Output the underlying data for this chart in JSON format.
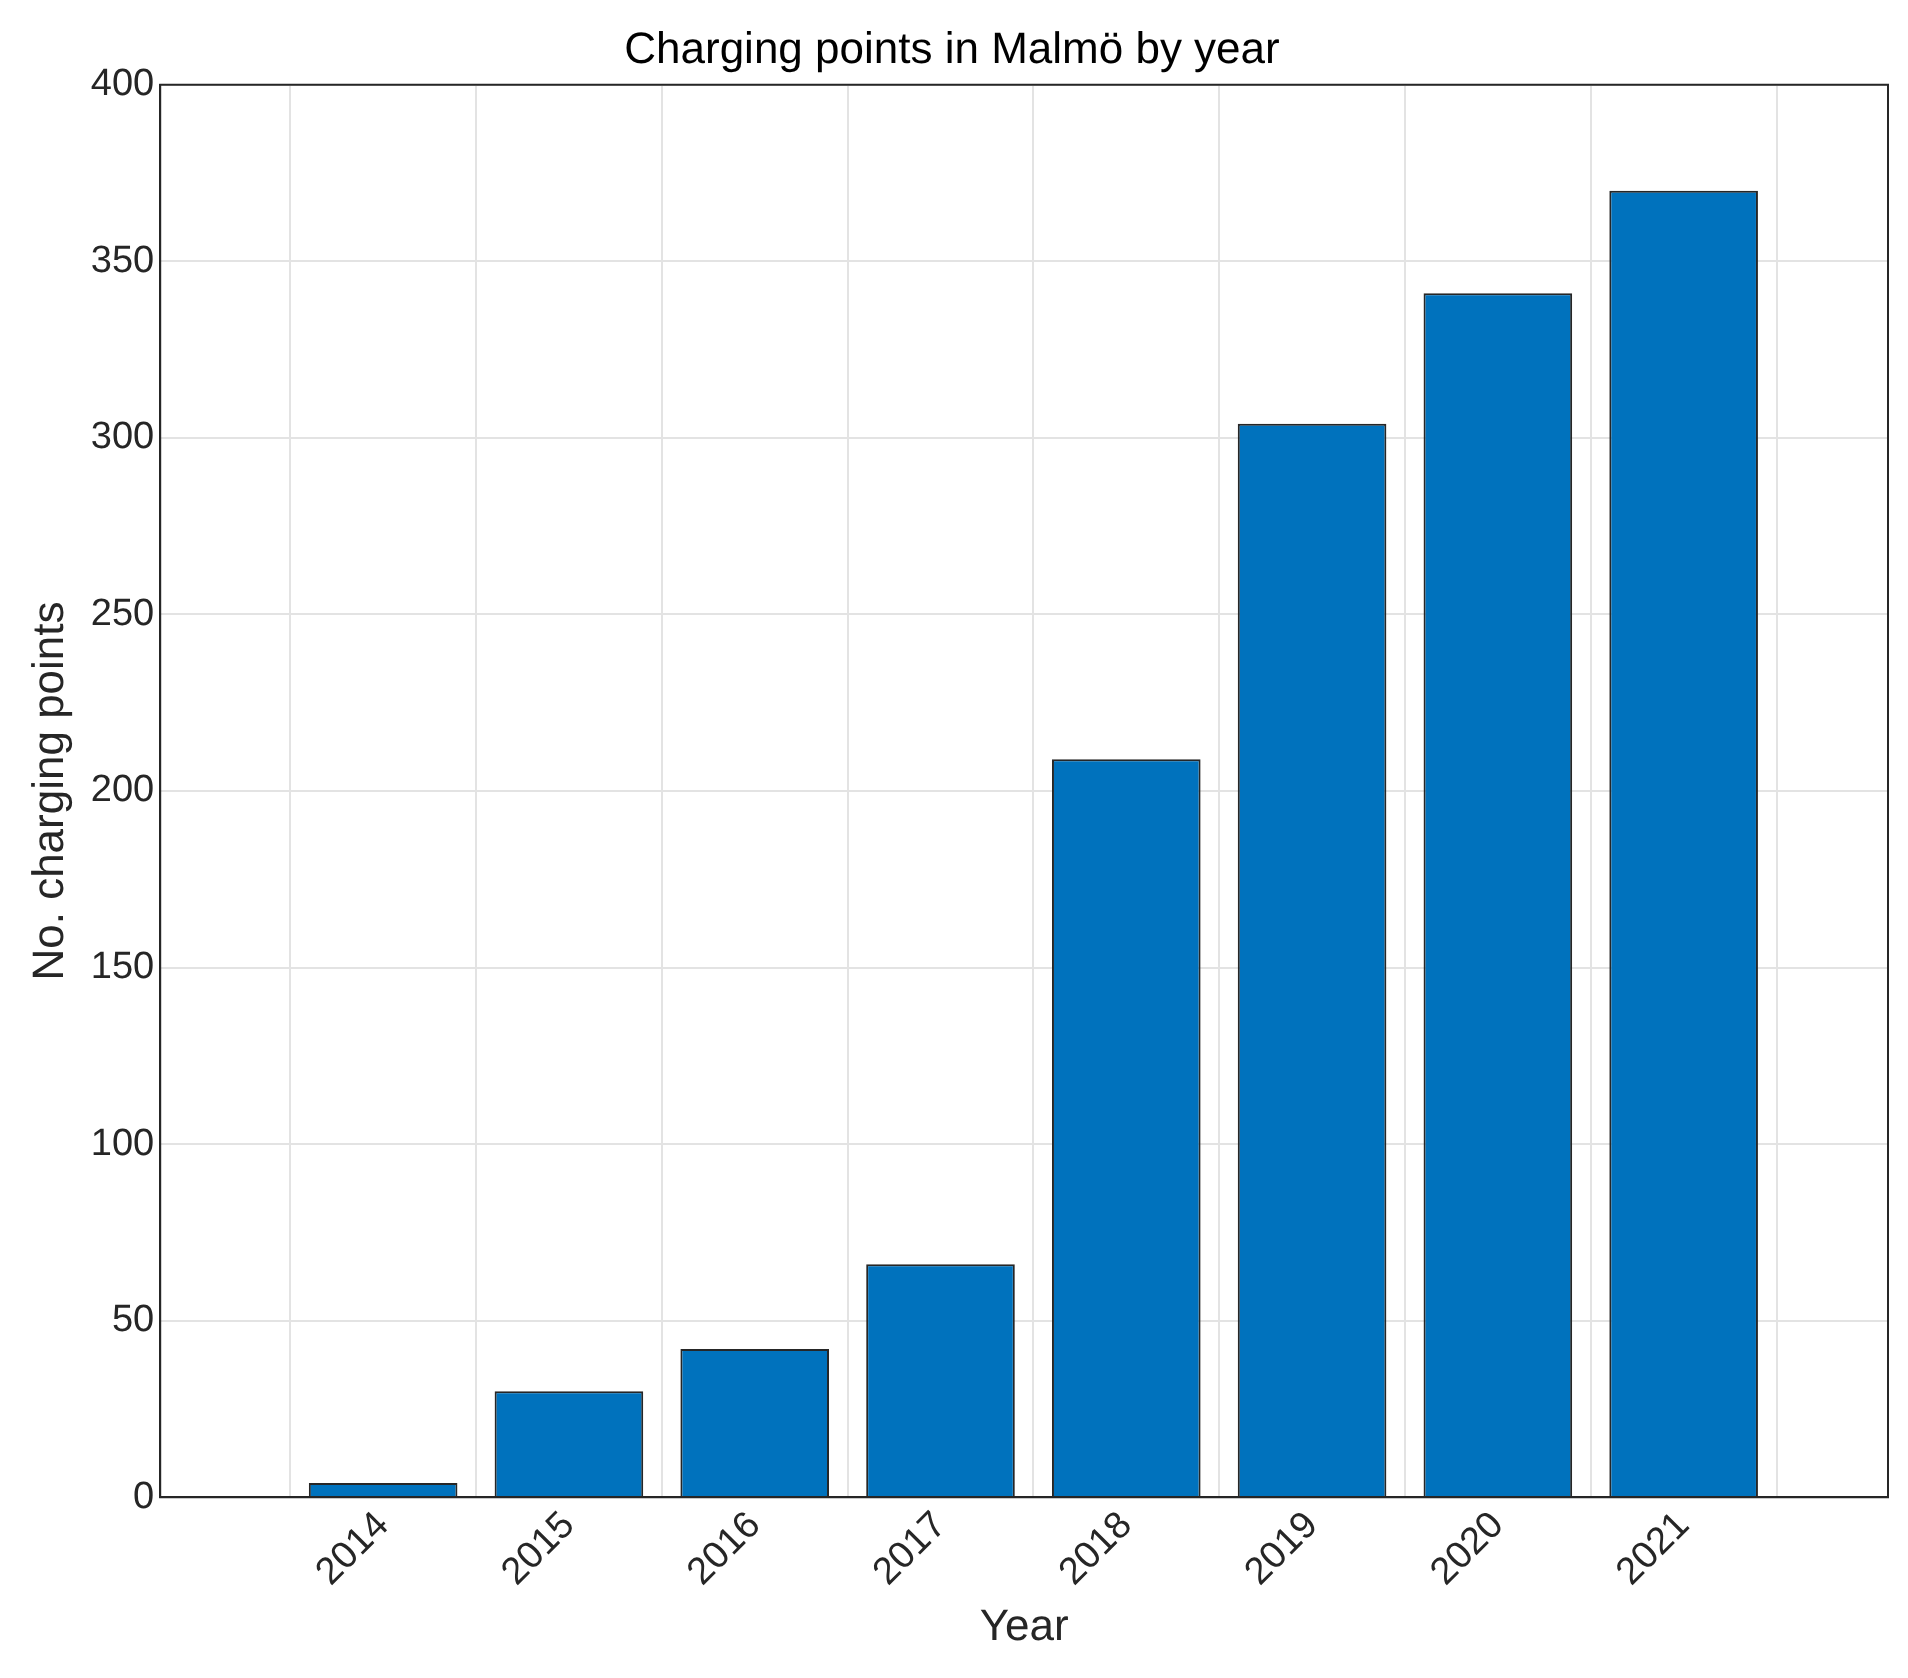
{
  "chart_data": {
    "type": "bar",
    "title": "Charging points in Malmö by year",
    "xlabel": "Year",
    "ylabel": "No. charging points",
    "x": [
      2014,
      2015,
      2016,
      2017,
      2018,
      2019,
      2020,
      2021
    ],
    "values": [
      4,
      30,
      42,
      66,
      209,
      304,
      341,
      370
    ],
    "color": "#0072bd",
    "xlim": [
      2012.8,
      2022.1
    ],
    "xticks": [
      2014,
      2015,
      2016,
      2017,
      2018,
      2019,
      2020,
      2021
    ],
    "ylim": [
      0,
      400
    ],
    "yticks": [
      0,
      50,
      100,
      150,
      200,
      250,
      300,
      350,
      400
    ],
    "grid": true,
    "legend": false
  }
}
